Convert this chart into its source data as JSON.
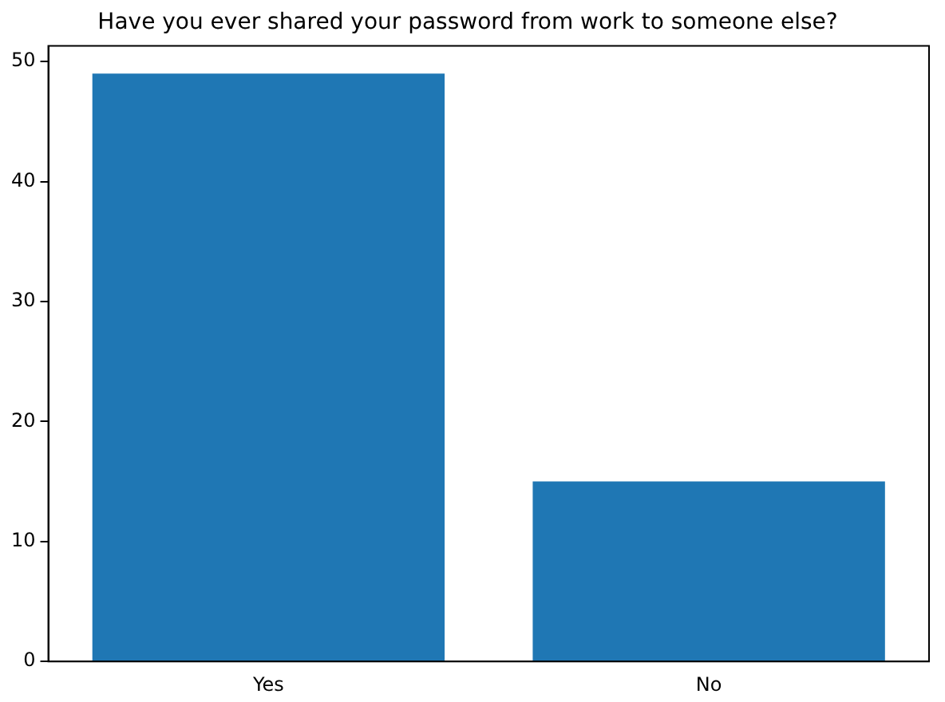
{
  "chart_data": {
    "type": "bar",
    "title": "Have you ever shared your password from work to someone else?",
    "categories": [
      "Yes",
      "No"
    ],
    "values": [
      49,
      15
    ],
    "color": "#1f77b4",
    "ylim": [
      0,
      51.3
    ],
    "yticks": [
      0,
      10,
      20,
      30,
      40,
      50
    ],
    "grid": false,
    "legend": false
  }
}
